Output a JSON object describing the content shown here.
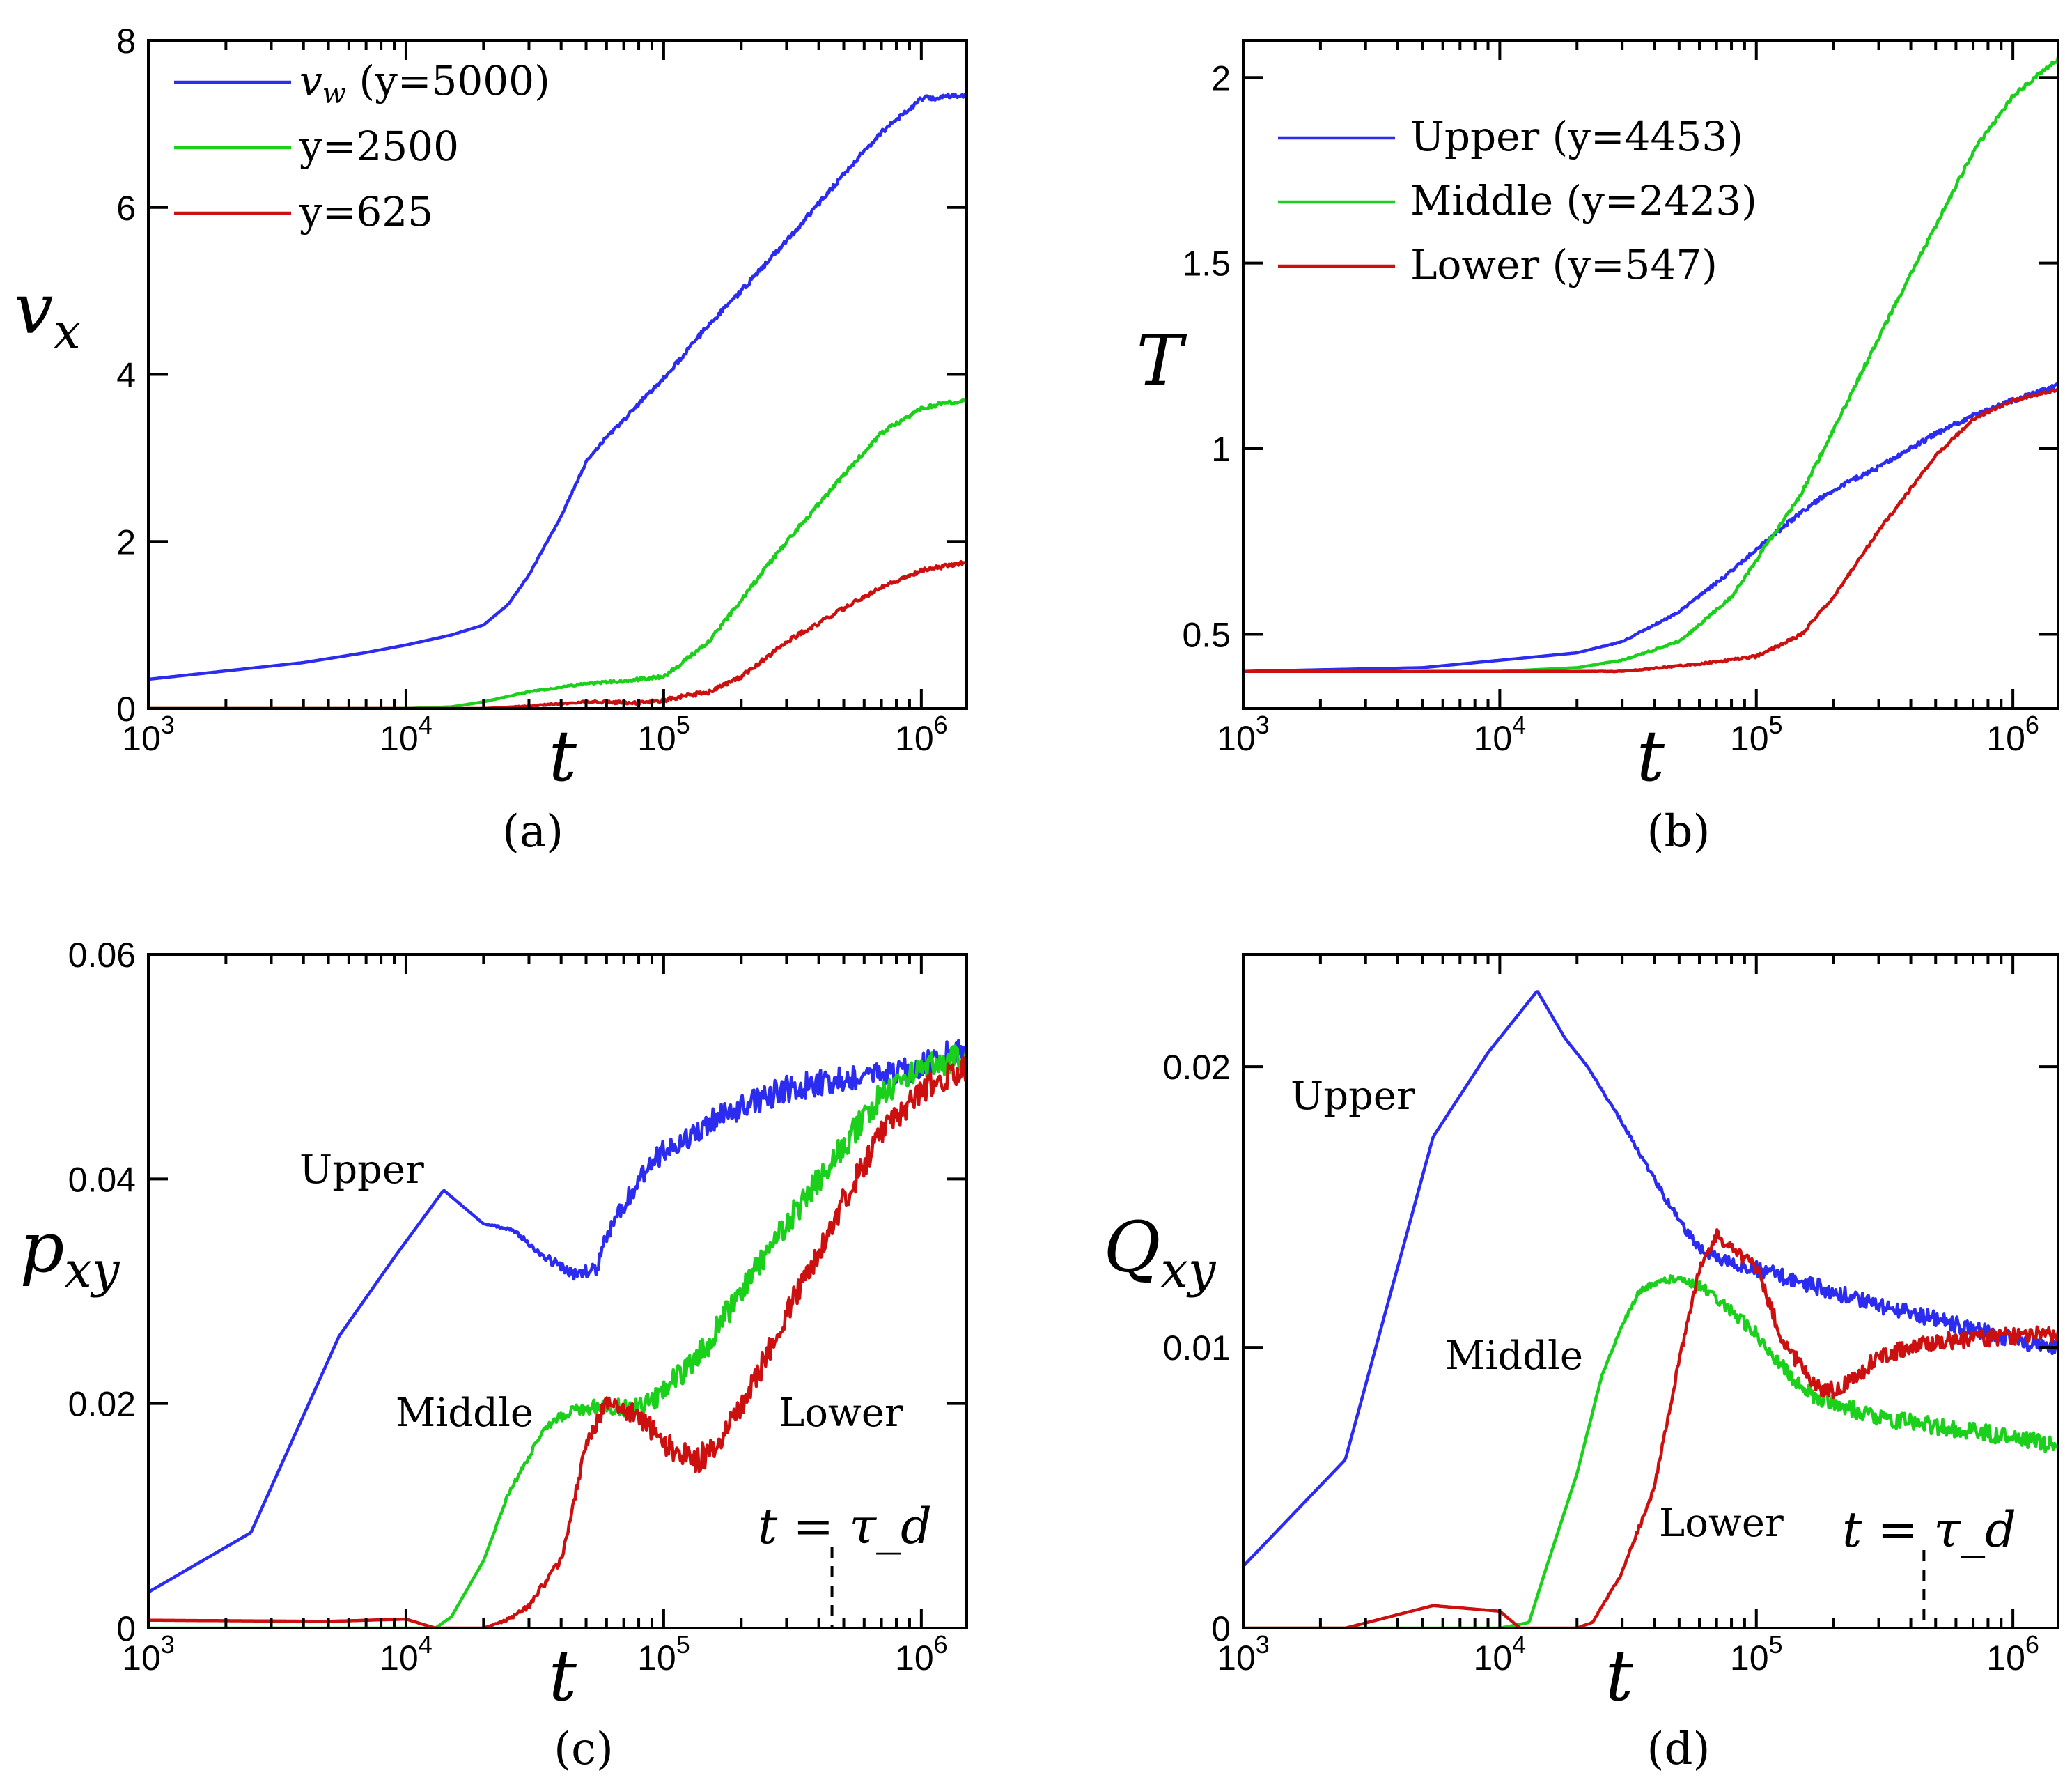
{
  "colors": {
    "blue": "#2c2cf0",
    "green": "#1ad01a",
    "red": "#cc1010",
    "axis": "#000000"
  },
  "chart_data": [
    {
      "id": "a",
      "type": "line",
      "xscale": "log",
      "xlim": [
        1000,
        1500000
      ],
      "ylim": [
        0,
        8
      ],
      "xlabel": "t",
      "ylabel": "v_x",
      "panel_label": "(a)",
      "xticks": [
        1000,
        10000,
        100000,
        1000000
      ],
      "xtick_labels": [
        "10^3",
        "10^4",
        "10^5",
        "10^6"
      ],
      "yticks": [
        0,
        2,
        4,
        6,
        8
      ],
      "ytick_labels": [
        "0",
        "2",
        "4",
        "6",
        "8"
      ],
      "legend_position": "top-left",
      "series": [
        {
          "name": "v_w (y=5000)",
          "legend_label": "v_w (y=5000)",
          "color": "#2c2cf0",
          "noise": 0.03,
          "x": [
            1000,
            2000,
            4000,
            7000,
            10000,
            15000,
            20000,
            25000,
            30000,
            40000,
            50000,
            60000,
            70000,
            80000,
            100000,
            150000,
            200000,
            300000,
            500000,
            700000,
            1000000,
            1500000
          ],
          "y": [
            0.35,
            0.45,
            0.55,
            0.67,
            0.76,
            0.88,
            1.0,
            1.25,
            1.6,
            2.3,
            2.95,
            3.25,
            3.45,
            3.65,
            3.95,
            4.6,
            5.0,
            5.6,
            6.4,
            6.9,
            7.3,
            7.35
          ]
        },
        {
          "name": "y=2500",
          "legend_label": "y=2500",
          "color": "#1ad01a",
          "noise": 0.025,
          "x": [
            1000,
            5000,
            10000,
            15000,
            20000,
            30000,
            50000,
            70000,
            100000,
            150000,
            200000,
            300000,
            500000,
            700000,
            1000000,
            1500000
          ],
          "y": [
            0,
            0,
            0,
            0.02,
            0.08,
            0.2,
            0.3,
            0.33,
            0.38,
            0.8,
            1.3,
            2.0,
            2.8,
            3.3,
            3.6,
            3.7
          ]
        },
        {
          "name": "y=625",
          "legend_label": "y=625",
          "color": "#cc1010",
          "noise": 0.025,
          "x": [
            1000,
            20000,
            30000,
            50000,
            80000,
            100000,
            150000,
            200000,
            300000,
            500000,
            700000,
            1000000,
            1500000
          ],
          "y": [
            0,
            0,
            0.03,
            0.08,
            0.07,
            0.1,
            0.2,
            0.38,
            0.8,
            1.2,
            1.45,
            1.65,
            1.75
          ]
        }
      ]
    },
    {
      "id": "b",
      "type": "line",
      "xscale": "log",
      "xlim": [
        1000,
        1500000
      ],
      "ylim": [
        0.3,
        2.1
      ],
      "xlabel": "t",
      "ylabel": "T",
      "panel_label": "(b)",
      "xticks": [
        1000,
        10000,
        100000,
        1000000
      ],
      "xtick_labels": [
        "10^3",
        "10^4",
        "10^5",
        "10^6"
      ],
      "yticks": [
        0.5,
        1,
        1.5,
        2
      ],
      "ytick_labels": [
        "0.5",
        "1",
        "1.5",
        "2"
      ],
      "legend_position": "top-left",
      "series": [
        {
          "name": "Upper (y=4453)",
          "legend_label": "Upper (y=4453)",
          "color": "#2c2cf0",
          "noise": 0.006,
          "x": [
            1000,
            5000,
            10000,
            20000,
            30000,
            50000,
            80000,
            100000,
            150000,
            200000,
            300000,
            500000,
            700000,
            1000000,
            1500000
          ],
          "y": [
            0.4,
            0.41,
            0.43,
            0.45,
            0.48,
            0.56,
            0.67,
            0.73,
            0.83,
            0.89,
            0.95,
            1.04,
            1.09,
            1.13,
            1.17
          ]
        },
        {
          "name": "Middle (y=2423)",
          "legend_label": "Middle (y=2423)",
          "color": "#1ad01a",
          "noise": 0.006,
          "x": [
            1000,
            10000,
            20000,
            30000,
            50000,
            80000,
            100000,
            150000,
            200000,
            300000,
            500000,
            700000,
            1000000,
            1500000
          ],
          "y": [
            0.4,
            0.4,
            0.41,
            0.43,
            0.48,
            0.6,
            0.7,
            0.88,
            1.05,
            1.3,
            1.6,
            1.8,
            1.95,
            2.05
          ]
        },
        {
          "name": "Lower (y=547)",
          "legend_label": "Lower (y=547)",
          "color": "#cc1010",
          "noise": 0.004,
          "x": [
            1000,
            30000,
            60000,
            100000,
            150000,
            200000,
            300000,
            500000,
            700000,
            1000000,
            1500000
          ],
          "y": [
            0.4,
            0.4,
            0.42,
            0.44,
            0.5,
            0.6,
            0.78,
            0.98,
            1.08,
            1.13,
            1.16
          ]
        }
      ]
    },
    {
      "id": "c",
      "type": "line",
      "xscale": "log",
      "xlim": [
        1000,
        1500000
      ],
      "ylim": [
        0,
        0.06
      ],
      "xlabel": "t",
      "ylabel": "p_xy",
      "panel_label": "(c)",
      "xticks": [
        1000,
        10000,
        100000,
        1000000
      ],
      "xtick_labels": [
        "10^3",
        "10^4",
        "10^5",
        "10^6"
      ],
      "yticks": [
        0,
        0.02,
        0.04,
        0.06
      ],
      "ytick_labels": [
        "0",
        "0.02",
        "0.04",
        "0.06"
      ],
      "annotations": [
        "Upper",
        "Middle",
        "Lower"
      ],
      "tau_label": "t = τ_d",
      "tau_x": 450000,
      "series": [
        {
          "name": "Upper",
          "color": "#2c2cf0",
          "noise": 0.0012,
          "x": [
            1000,
            2500,
            5500,
            9000,
            14000,
            20000,
            26000,
            35000,
            45000,
            55000,
            60000,
            80000,
            100000,
            150000,
            200000,
            300000,
            500000,
            800000,
            1000000,
            1500000
          ],
          "y": [
            0.0032,
            0.0085,
            0.026,
            0.033,
            0.039,
            0.036,
            0.0355,
            0.033,
            0.0315,
            0.032,
            0.035,
            0.04,
            0.0425,
            0.045,
            0.0465,
            0.048,
            0.049,
            0.0495,
            0.05,
            0.052
          ]
        },
        {
          "name": "Middle",
          "color": "#1ad01a",
          "noise": 0.0012,
          "x": [
            1000,
            13000,
            15000,
            20000,
            25000,
            35000,
            45000,
            60000,
            80000,
            100000,
            150000,
            200000,
            300000,
            500000,
            700000,
            1000000,
            1500000
          ],
          "y": [
            0,
            0,
            0.001,
            0.006,
            0.012,
            0.018,
            0.0195,
            0.0198,
            0.0195,
            0.021,
            0.0255,
            0.03,
            0.036,
            0.043,
            0.0475,
            0.05,
            0.051
          ]
        },
        {
          "name": "Lower",
          "color": "#cc1010",
          "noise": 0.0012,
          "x": [
            1000,
            5000,
            10000,
            13000,
            20000,
            25000,
            30000,
            40000,
            50000,
            60000,
            80000,
            100000,
            130000,
            160000,
            200000,
            300000,
            500000,
            700000,
            1000000,
            1500000
          ],
          "y": [
            0.0007,
            0.0006,
            0.0008,
            0,
            0,
            0.0008,
            0.002,
            0.006,
            0.0165,
            0.02,
            0.019,
            0.0165,
            0.0148,
            0.016,
            0.0195,
            0.028,
            0.038,
            0.044,
            0.048,
            0.05
          ]
        }
      ]
    },
    {
      "id": "d",
      "type": "line",
      "xscale": "log",
      "xlim": [
        1000,
        1500000
      ],
      "ylim": [
        0,
        0.024
      ],
      "xlabel": "t",
      "ylabel": "Q_xy",
      "panel_label": "(d)",
      "xticks": [
        1000,
        10000,
        100000,
        1000000
      ],
      "xtick_labels": [
        "10^3",
        "10^4",
        "10^5",
        "10^6"
      ],
      "yticks": [
        0,
        0.01,
        0.02
      ],
      "ytick_labels": [
        "0",
        "0.01",
        "0.02"
      ],
      "annotations": [
        "Upper",
        "Middle",
        "Lower"
      ],
      "tau_label": "t = τ_d",
      "tau_x": 450000,
      "series": [
        {
          "name": "Upper",
          "color": "#2c2cf0",
          "noise": 0.0003,
          "x": [
            1000,
            2500,
            5500,
            9000,
            14000,
            18000,
            22000,
            30000,
            40000,
            50000,
            60000,
            80000,
            100000,
            150000,
            200000,
            300000,
            500000,
            1000000,
            1500000
          ],
          "y": [
            0.0022,
            0.006,
            0.0175,
            0.0205,
            0.0227,
            0.021,
            0.02,
            0.018,
            0.016,
            0.0145,
            0.0135,
            0.013,
            0.0128,
            0.0123,
            0.012,
            0.0115,
            0.011,
            0.0103,
            0.01
          ]
        },
        {
          "name": "Middle",
          "color": "#1ad01a",
          "noise": 0.0003,
          "x": [
            1000,
            10000,
            13000,
            15000,
            20000,
            25000,
            30000,
            35000,
            40000,
            50000,
            60000,
            80000,
            100000,
            150000,
            200000,
            300000,
            500000,
            1000000,
            1500000
          ],
          "y": [
            0,
            0,
            0.0002,
            0.002,
            0.0055,
            0.009,
            0.0108,
            0.012,
            0.0123,
            0.0125,
            0.0122,
            0.0113,
            0.0105,
            0.0085,
            0.008,
            0.0075,
            0.0072,
            0.0068,
            0.0065
          ]
        },
        {
          "name": "Lower",
          "color": "#cc1010",
          "noise": 0.0003,
          "x": [
            1000,
            2500,
            5500,
            10000,
            12000,
            15000,
            20000,
            23000,
            30000,
            40000,
            50000,
            60000,
            70000,
            80000,
            100000,
            130000,
            180000,
            200000,
            250000,
            300000,
            500000,
            1000000,
            1500000
          ],
          "y": [
            0,
            0,
            0.0008,
            0.0006,
            0,
            0,
            0,
            0.0002,
            0.002,
            0.005,
            0.0095,
            0.0128,
            0.014,
            0.0135,
            0.0128,
            0.01,
            0.0085,
            0.0085,
            0.009,
            0.0097,
            0.0102,
            0.0104,
            0.0105
          ]
        }
      ]
    }
  ]
}
